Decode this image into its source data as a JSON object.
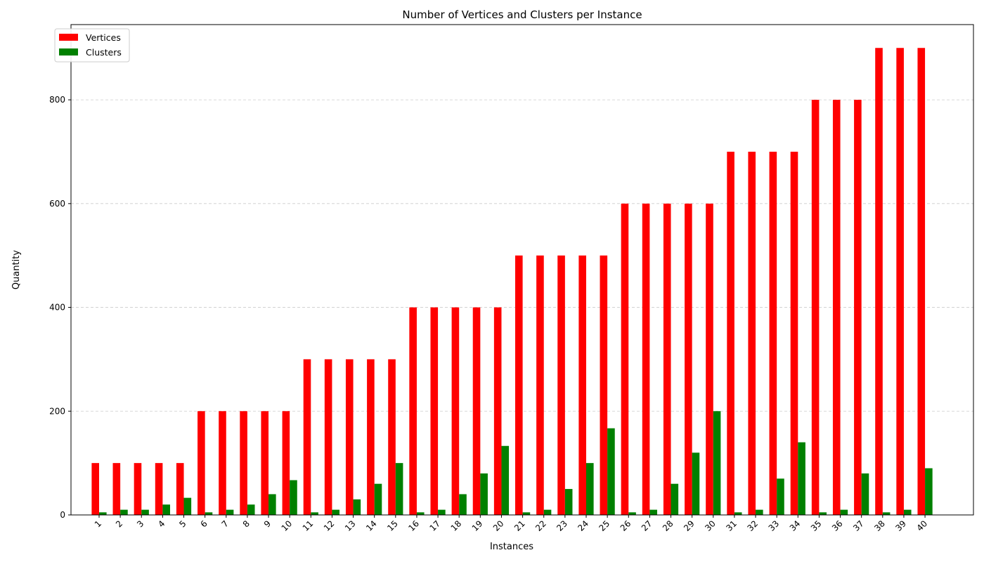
{
  "chart_data": {
    "type": "bar",
    "title": "Number of Vertices and Clusters per Instance",
    "xlabel": "Instances",
    "ylabel": "Quantity",
    "categories": [
      "1",
      "2",
      "3",
      "4",
      "5",
      "6",
      "7",
      "8",
      "9",
      "10",
      "11",
      "12",
      "13",
      "14",
      "15",
      "16",
      "17",
      "18",
      "19",
      "20",
      "21",
      "22",
      "23",
      "24",
      "25",
      "26",
      "27",
      "28",
      "29",
      "30",
      "31",
      "32",
      "33",
      "34",
      "35",
      "36",
      "37",
      "38",
      "39",
      "40"
    ],
    "series": [
      {
        "name": "Vertices",
        "color": "#ff0000",
        "values": [
          100,
          100,
          100,
          100,
          100,
          200,
          200,
          200,
          200,
          200,
          300,
          300,
          300,
          300,
          300,
          400,
          400,
          400,
          400,
          400,
          500,
          500,
          500,
          500,
          500,
          600,
          600,
          600,
          600,
          600,
          700,
          700,
          700,
          700,
          800,
          800,
          800,
          900,
          900,
          900
        ]
      },
      {
        "name": "Clusters",
        "color": "#008000",
        "values": [
          5,
          10,
          10,
          20,
          33,
          5,
          10,
          20,
          40,
          67,
          5,
          10,
          30,
          60,
          100,
          5,
          10,
          40,
          80,
          133,
          5,
          10,
          50,
          100,
          167,
          5,
          10,
          60,
          120,
          200,
          5,
          10,
          70,
          140,
          5,
          10,
          80,
          5,
          10,
          90
        ]
      }
    ],
    "yticks": [
      "0",
      "200",
      "400",
      "600",
      "800"
    ],
    "ylim": [
      0,
      945
    ],
    "grid": "y-dashed",
    "legend_position": "upper-left",
    "xtick_rotation": 45
  }
}
